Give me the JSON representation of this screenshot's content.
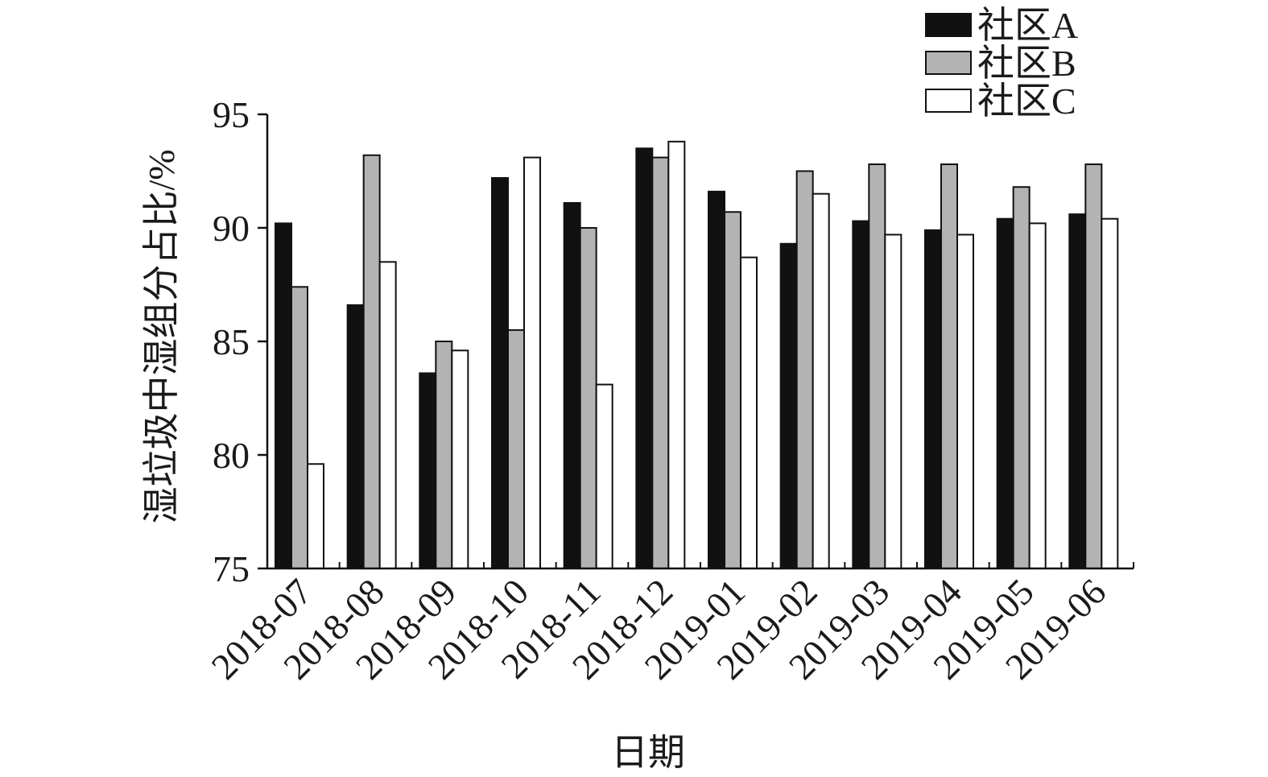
{
  "chart_data": {
    "type": "bar",
    "xlabel": "日期",
    "ylabel": "湿垃圾中湿组分占比/%",
    "ylim": [
      75,
      95
    ],
    "yticks": [
      75,
      80,
      85,
      90,
      95
    ],
    "grid": false,
    "legend_position": "top-right",
    "categories": [
      "2018-07",
      "2018-08",
      "2018-09",
      "2018-10",
      "2018-11",
      "2018-12",
      "2019-01",
      "2019-02",
      "2019-03",
      "2019-04",
      "2019-05",
      "2019-06"
    ],
    "series": [
      {
        "name": "社区A",
        "color": "#111111",
        "values": [
          90.2,
          86.6,
          83.6,
          92.2,
          91.1,
          93.5,
          91.6,
          89.3,
          90.3,
          89.9,
          90.4,
          90.6
        ]
      },
      {
        "name": "社区B",
        "color": "#b3b3b3",
        "values": [
          87.4,
          93.2,
          85.0,
          85.5,
          90.0,
          93.1,
          90.7,
          92.5,
          92.8,
          92.8,
          91.8,
          92.8
        ]
      },
      {
        "name": "社区C",
        "color": "#ffffff",
        "values": [
          79.6,
          88.5,
          84.6,
          93.1,
          83.1,
          93.8,
          88.7,
          91.5,
          89.7,
          89.7,
          90.2,
          90.4
        ]
      }
    ]
  }
}
